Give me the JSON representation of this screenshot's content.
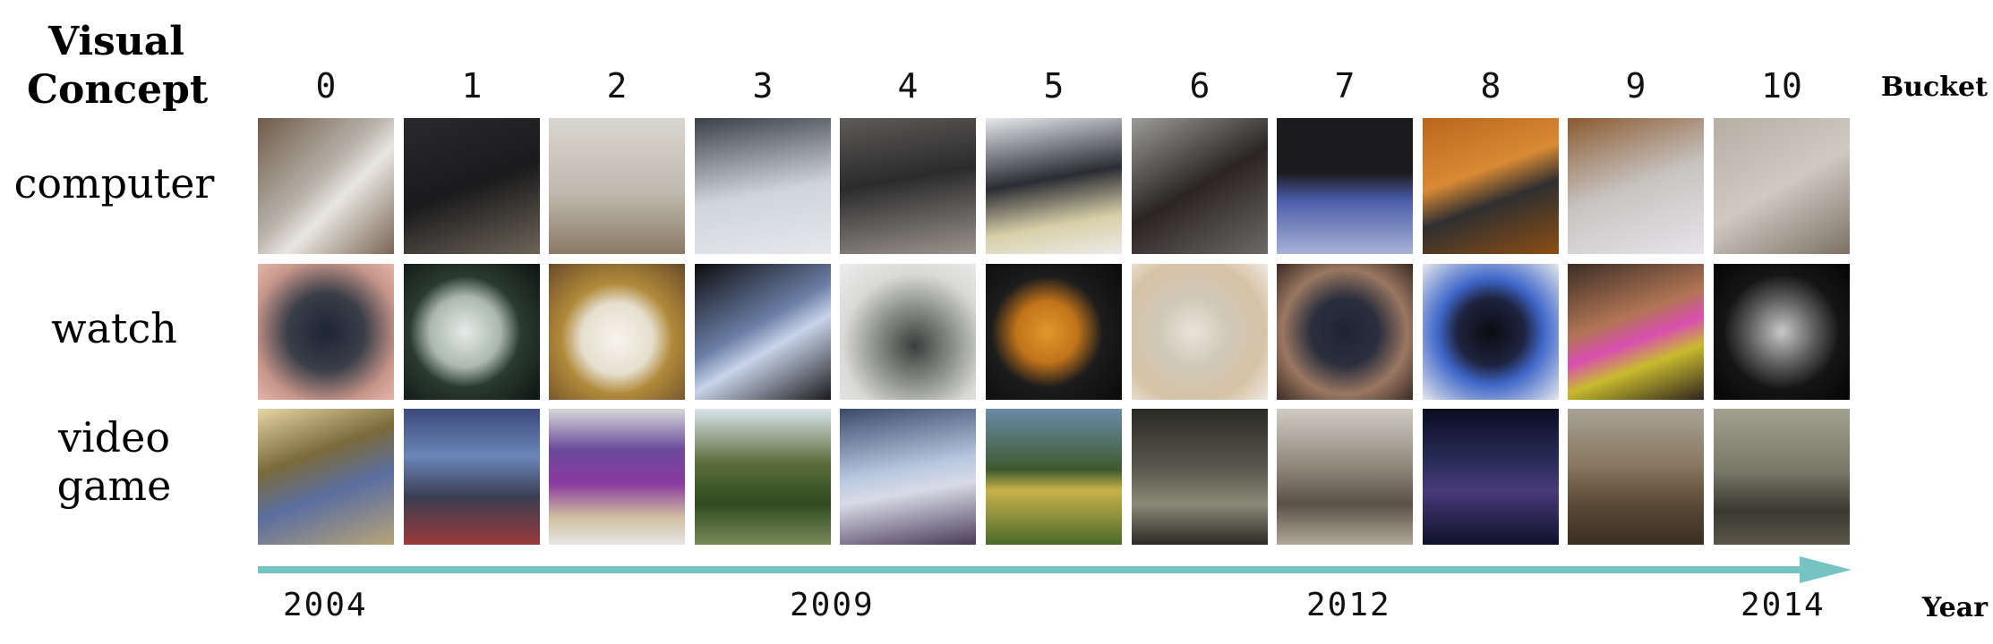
{
  "header": {
    "concept_line1": "Visual",
    "concept_line2": "Concept",
    "bucket_label": "Bucket",
    "year_label": "Year"
  },
  "buckets": [
    "0",
    "1",
    "2",
    "3",
    "4",
    "5",
    "6",
    "7",
    "8",
    "9",
    "10"
  ],
  "rows": [
    {
      "label_line1": "computer",
      "label_line2": "",
      "concept": "computer"
    },
    {
      "label_line1": "watch",
      "label_line2": "",
      "concept": "watch"
    },
    {
      "label_line1": "video",
      "label_line2": "game",
      "concept": "videogame"
    }
  ],
  "years": [
    "2004",
    "2009",
    "2012",
    "2014"
  ],
  "colors": {
    "timeline_arrow": "#76c3c3"
  }
}
